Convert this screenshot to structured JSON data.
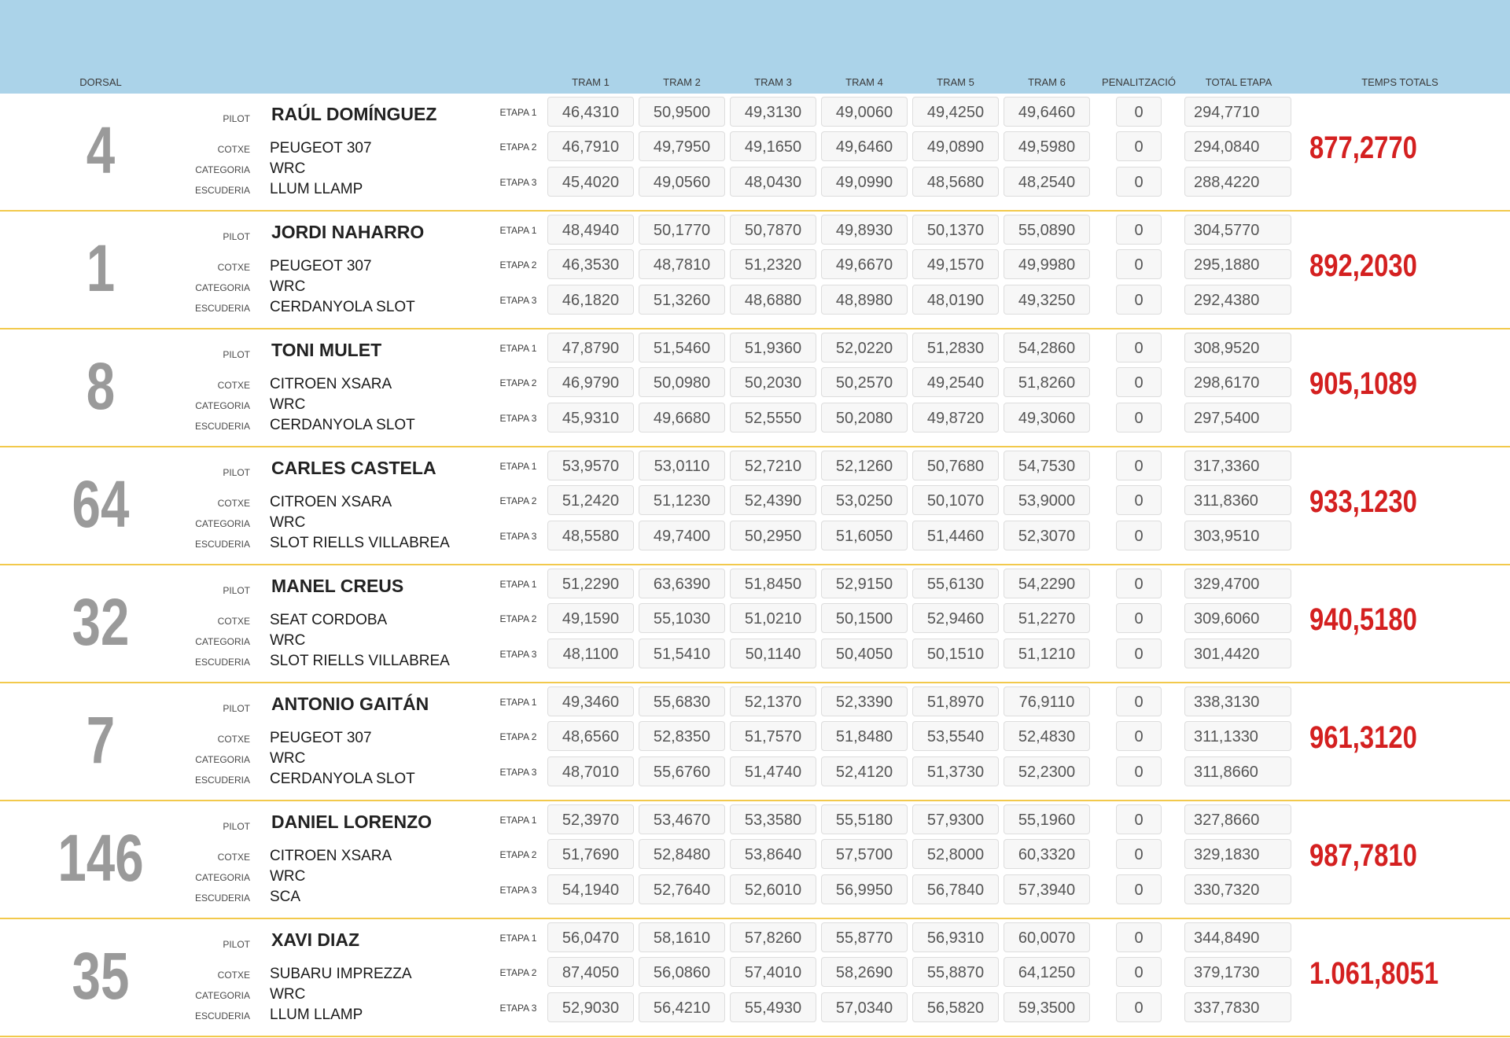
{
  "header": {
    "dorsal": "DORSAL",
    "tram_labels": [
      "TRAM 1",
      "TRAM 2",
      "TRAM 3",
      "TRAM 4",
      "TRAM 5",
      "TRAM 6"
    ],
    "penalitzacio": "PENALITZACIÓ",
    "total_etapa": "TOTAL ETAPA",
    "temps_totals": "TEMPS TOTALS"
  },
  "labels": {
    "pilot": "PILOT",
    "cotxe": "COTXE",
    "categoria": "CATEGORIA",
    "escuderia": "ESCUDERIA",
    "etapa_labels": [
      "ETAPA 1",
      "ETAPA 2",
      "ETAPA 3"
    ]
  },
  "colors": {
    "header_bg": "#abd3e9",
    "row_divider": "#f2c94c",
    "total_red": "#d42020",
    "dorsal_grey": "#9a9a9a"
  },
  "entries": [
    {
      "dorsal": "4",
      "pilot": "RAÚL DOMÍNGUEZ",
      "cotxe": "PEUGEOT 307",
      "categoria": "WRC",
      "escuderia": "LLUM LLAMP",
      "etapes": [
        {
          "trams": [
            "46,4310",
            "50,9500",
            "49,3130",
            "49,0060",
            "49,4250",
            "49,6460"
          ],
          "penalitzacio": "0",
          "total": "294,7710"
        },
        {
          "trams": [
            "46,7910",
            "49,7950",
            "49,1650",
            "49,6460",
            "49,0890",
            "49,5980"
          ],
          "penalitzacio": "0",
          "total": "294,0840"
        },
        {
          "trams": [
            "45,4020",
            "49,0560",
            "48,0430",
            "49,0990",
            "48,5680",
            "48,2540"
          ],
          "penalitzacio": "0",
          "total": "288,4220"
        }
      ],
      "temps_total": "877,2770"
    },
    {
      "dorsal": "1",
      "pilot": "JORDI NAHARRO",
      "cotxe": "PEUGEOT 307",
      "categoria": "WRC",
      "escuderia": "CERDANYOLA SLOT",
      "etapes": [
        {
          "trams": [
            "48,4940",
            "50,1770",
            "50,7870",
            "49,8930",
            "50,1370",
            "55,0890"
          ],
          "penalitzacio": "0",
          "total": "304,5770"
        },
        {
          "trams": [
            "46,3530",
            "48,7810",
            "51,2320",
            "49,6670",
            "49,1570",
            "49,9980"
          ],
          "penalitzacio": "0",
          "total": "295,1880"
        },
        {
          "trams": [
            "46,1820",
            "51,3260",
            "48,6880",
            "48,8980",
            "48,0190",
            "49,3250"
          ],
          "penalitzacio": "0",
          "total": "292,4380"
        }
      ],
      "temps_total": "892,2030"
    },
    {
      "dorsal": "8",
      "pilot": "TONI MULET",
      "cotxe": "CITROEN XSARA",
      "categoria": "WRC",
      "escuderia": "CERDANYOLA SLOT",
      "etapes": [
        {
          "trams": [
            "47,8790",
            "51,5460",
            "51,9360",
            "52,0220",
            "51,2830",
            "54,2860"
          ],
          "penalitzacio": "0",
          "total": "308,9520"
        },
        {
          "trams": [
            "46,9790",
            "50,0980",
            "50,2030",
            "50,2570",
            "49,2540",
            "51,8260"
          ],
          "penalitzacio": "0",
          "total": "298,6170"
        },
        {
          "trams": [
            "45,9310",
            "49,6680",
            "52,5550",
            "50,2080",
            "49,8720",
            "49,3060"
          ],
          "penalitzacio": "0",
          "total": "297,5400"
        }
      ],
      "temps_total": "905,1089"
    },
    {
      "dorsal": "64",
      "pilot": "CARLES CASTELA",
      "cotxe": "CITROEN XSARA",
      "categoria": "WRC",
      "escuderia": "SLOT RIELLS VILLABREA",
      "etapes": [
        {
          "trams": [
            "53,9570",
            "53,0110",
            "52,7210",
            "52,1260",
            "50,7680",
            "54,7530"
          ],
          "penalitzacio": "0",
          "total": "317,3360"
        },
        {
          "trams": [
            "51,2420",
            "51,1230",
            "52,4390",
            "53,0250",
            "50,1070",
            "53,9000"
          ],
          "penalitzacio": "0",
          "total": "311,8360"
        },
        {
          "trams": [
            "48,5580",
            "49,7400",
            "50,2950",
            "51,6050",
            "51,4460",
            "52,3070"
          ],
          "penalitzacio": "0",
          "total": "303,9510"
        }
      ],
      "temps_total": "933,1230"
    },
    {
      "dorsal": "32",
      "pilot": "MANEL CREUS",
      "cotxe": "SEAT CORDOBA",
      "categoria": "WRC",
      "escuderia": "SLOT RIELLS VILLABREA",
      "etapes": [
        {
          "trams": [
            "51,2290",
            "63,6390",
            "51,8450",
            "52,9150",
            "55,6130",
            "54,2290"
          ],
          "penalitzacio": "0",
          "total": "329,4700"
        },
        {
          "trams": [
            "49,1590",
            "55,1030",
            "51,0210",
            "50,1500",
            "52,9460",
            "51,2270"
          ],
          "penalitzacio": "0",
          "total": "309,6060"
        },
        {
          "trams": [
            "48,1100",
            "51,5410",
            "50,1140",
            "50,4050",
            "50,1510",
            "51,1210"
          ],
          "penalitzacio": "0",
          "total": "301,4420"
        }
      ],
      "temps_total": "940,5180"
    },
    {
      "dorsal": "7",
      "pilot": "ANTONIO GAITÁN",
      "cotxe": "PEUGEOT 307",
      "categoria": "WRC",
      "escuderia": "CERDANYOLA SLOT",
      "etapes": [
        {
          "trams": [
            "49,3460",
            "55,6830",
            "52,1370",
            "52,3390",
            "51,8970",
            "76,9110"
          ],
          "penalitzacio": "0",
          "total": "338,3130"
        },
        {
          "trams": [
            "48,6560",
            "52,8350",
            "51,7570",
            "51,8480",
            "53,5540",
            "52,4830"
          ],
          "penalitzacio": "0",
          "total": "311,1330"
        },
        {
          "trams": [
            "48,7010",
            "55,6760",
            "51,4740",
            "52,4120",
            "51,3730",
            "52,2300"
          ],
          "penalitzacio": "0",
          "total": "311,8660"
        }
      ],
      "temps_total": "961,3120"
    },
    {
      "dorsal": "146",
      "pilot": "DANIEL LORENZO",
      "cotxe": "CITROEN XSARA",
      "categoria": "WRC",
      "escuderia": "SCA",
      "etapes": [
        {
          "trams": [
            "52,3970",
            "53,4670",
            "53,3580",
            "55,5180",
            "57,9300",
            "55,1960"
          ],
          "penalitzacio": "0",
          "total": "327,8660"
        },
        {
          "trams": [
            "51,7690",
            "52,8480",
            "53,8640",
            "57,5700",
            "52,8000",
            "60,3320"
          ],
          "penalitzacio": "0",
          "total": "329,1830"
        },
        {
          "trams": [
            "54,1940",
            "52,7640",
            "52,6010",
            "56,9950",
            "56,7840",
            "57,3940"
          ],
          "penalitzacio": "0",
          "total": "330,7320"
        }
      ],
      "temps_total": "987,7810"
    },
    {
      "dorsal": "35",
      "pilot": "XAVI DIAZ",
      "cotxe": "SUBARU IMPREZZA",
      "categoria": "WRC",
      "escuderia": "LLUM LLAMP",
      "etapes": [
        {
          "trams": [
            "56,0470",
            "58,1610",
            "57,8260",
            "55,8770",
            "56,9310",
            "60,0070"
          ],
          "penalitzacio": "0",
          "total": "344,8490"
        },
        {
          "trams": [
            "87,4050",
            "56,0860",
            "57,4010",
            "58,2690",
            "55,8870",
            "64,1250"
          ],
          "penalitzacio": "0",
          "total": "379,1730"
        },
        {
          "trams": [
            "52,9030",
            "56,4210",
            "55,4930",
            "57,0340",
            "56,5820",
            "59,3500"
          ],
          "penalitzacio": "0",
          "total": "337,7830"
        }
      ],
      "temps_total": "1.061,8051"
    }
  ]
}
